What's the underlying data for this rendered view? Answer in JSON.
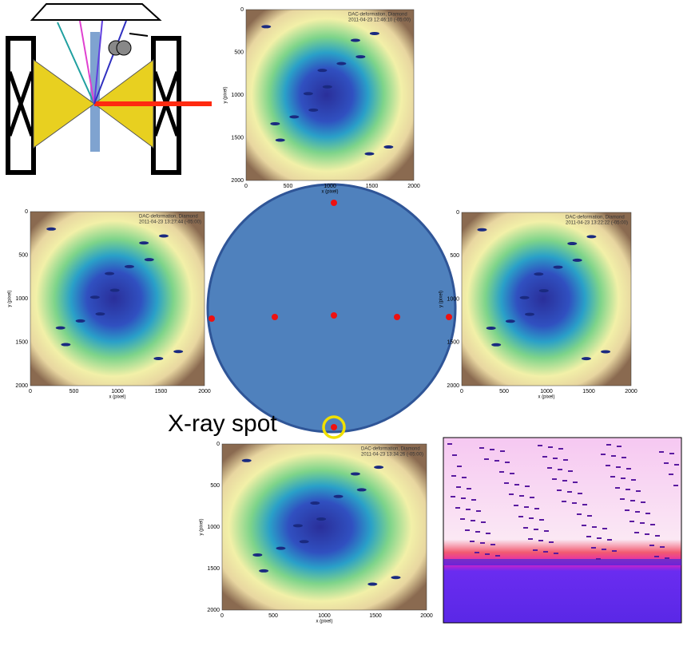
{
  "xray_label": "X-ray spot",
  "panels": [
    {
      "title": "DAC-deformation, Diamond",
      "timestamp": "2011-04-23 12:46:10 (-05:00)",
      "x_label": "x (pixel)",
      "y_label": "y (pixel)",
      "xticks": [
        "0",
        "500",
        "1000",
        "1500",
        "2000"
      ],
      "yticks": [
        "0",
        "500",
        "1000",
        "1500",
        "2000"
      ]
    },
    {
      "title": "DAC-deformation, Diamond",
      "timestamp": "2011-04-23 13:27:44 (-05:00)",
      "x_label": "x (pixel)",
      "y_label": "y (pixel)",
      "xticks": [
        "0",
        "500",
        "1000",
        "1500",
        "2000"
      ],
      "yticks": [
        "0",
        "500",
        "1000",
        "1500",
        "2000"
      ]
    },
    {
      "title": "DAC-deformation, Diamond",
      "timestamp": "2011-04-23 13:22:22 (-05:00)",
      "x_label": "x (pixel)",
      "y_label": "y (pixel)",
      "xticks": [
        "0",
        "500",
        "1000",
        "1500",
        "2000"
      ],
      "yticks": [
        "0",
        "500",
        "1000",
        "1500",
        "2000"
      ]
    },
    {
      "title": "DAC-deformation, Diamond",
      "timestamp": "2011-04-23 13:34:26 (-05:00)",
      "x_label": "x (pixel)",
      "y_label": "y (pixel)",
      "xticks": [
        "0",
        "500",
        "1000",
        "1500",
        "2000"
      ],
      "yticks": [
        "0",
        "500",
        "1000",
        "1500",
        "2000"
      ]
    }
  ]
}
